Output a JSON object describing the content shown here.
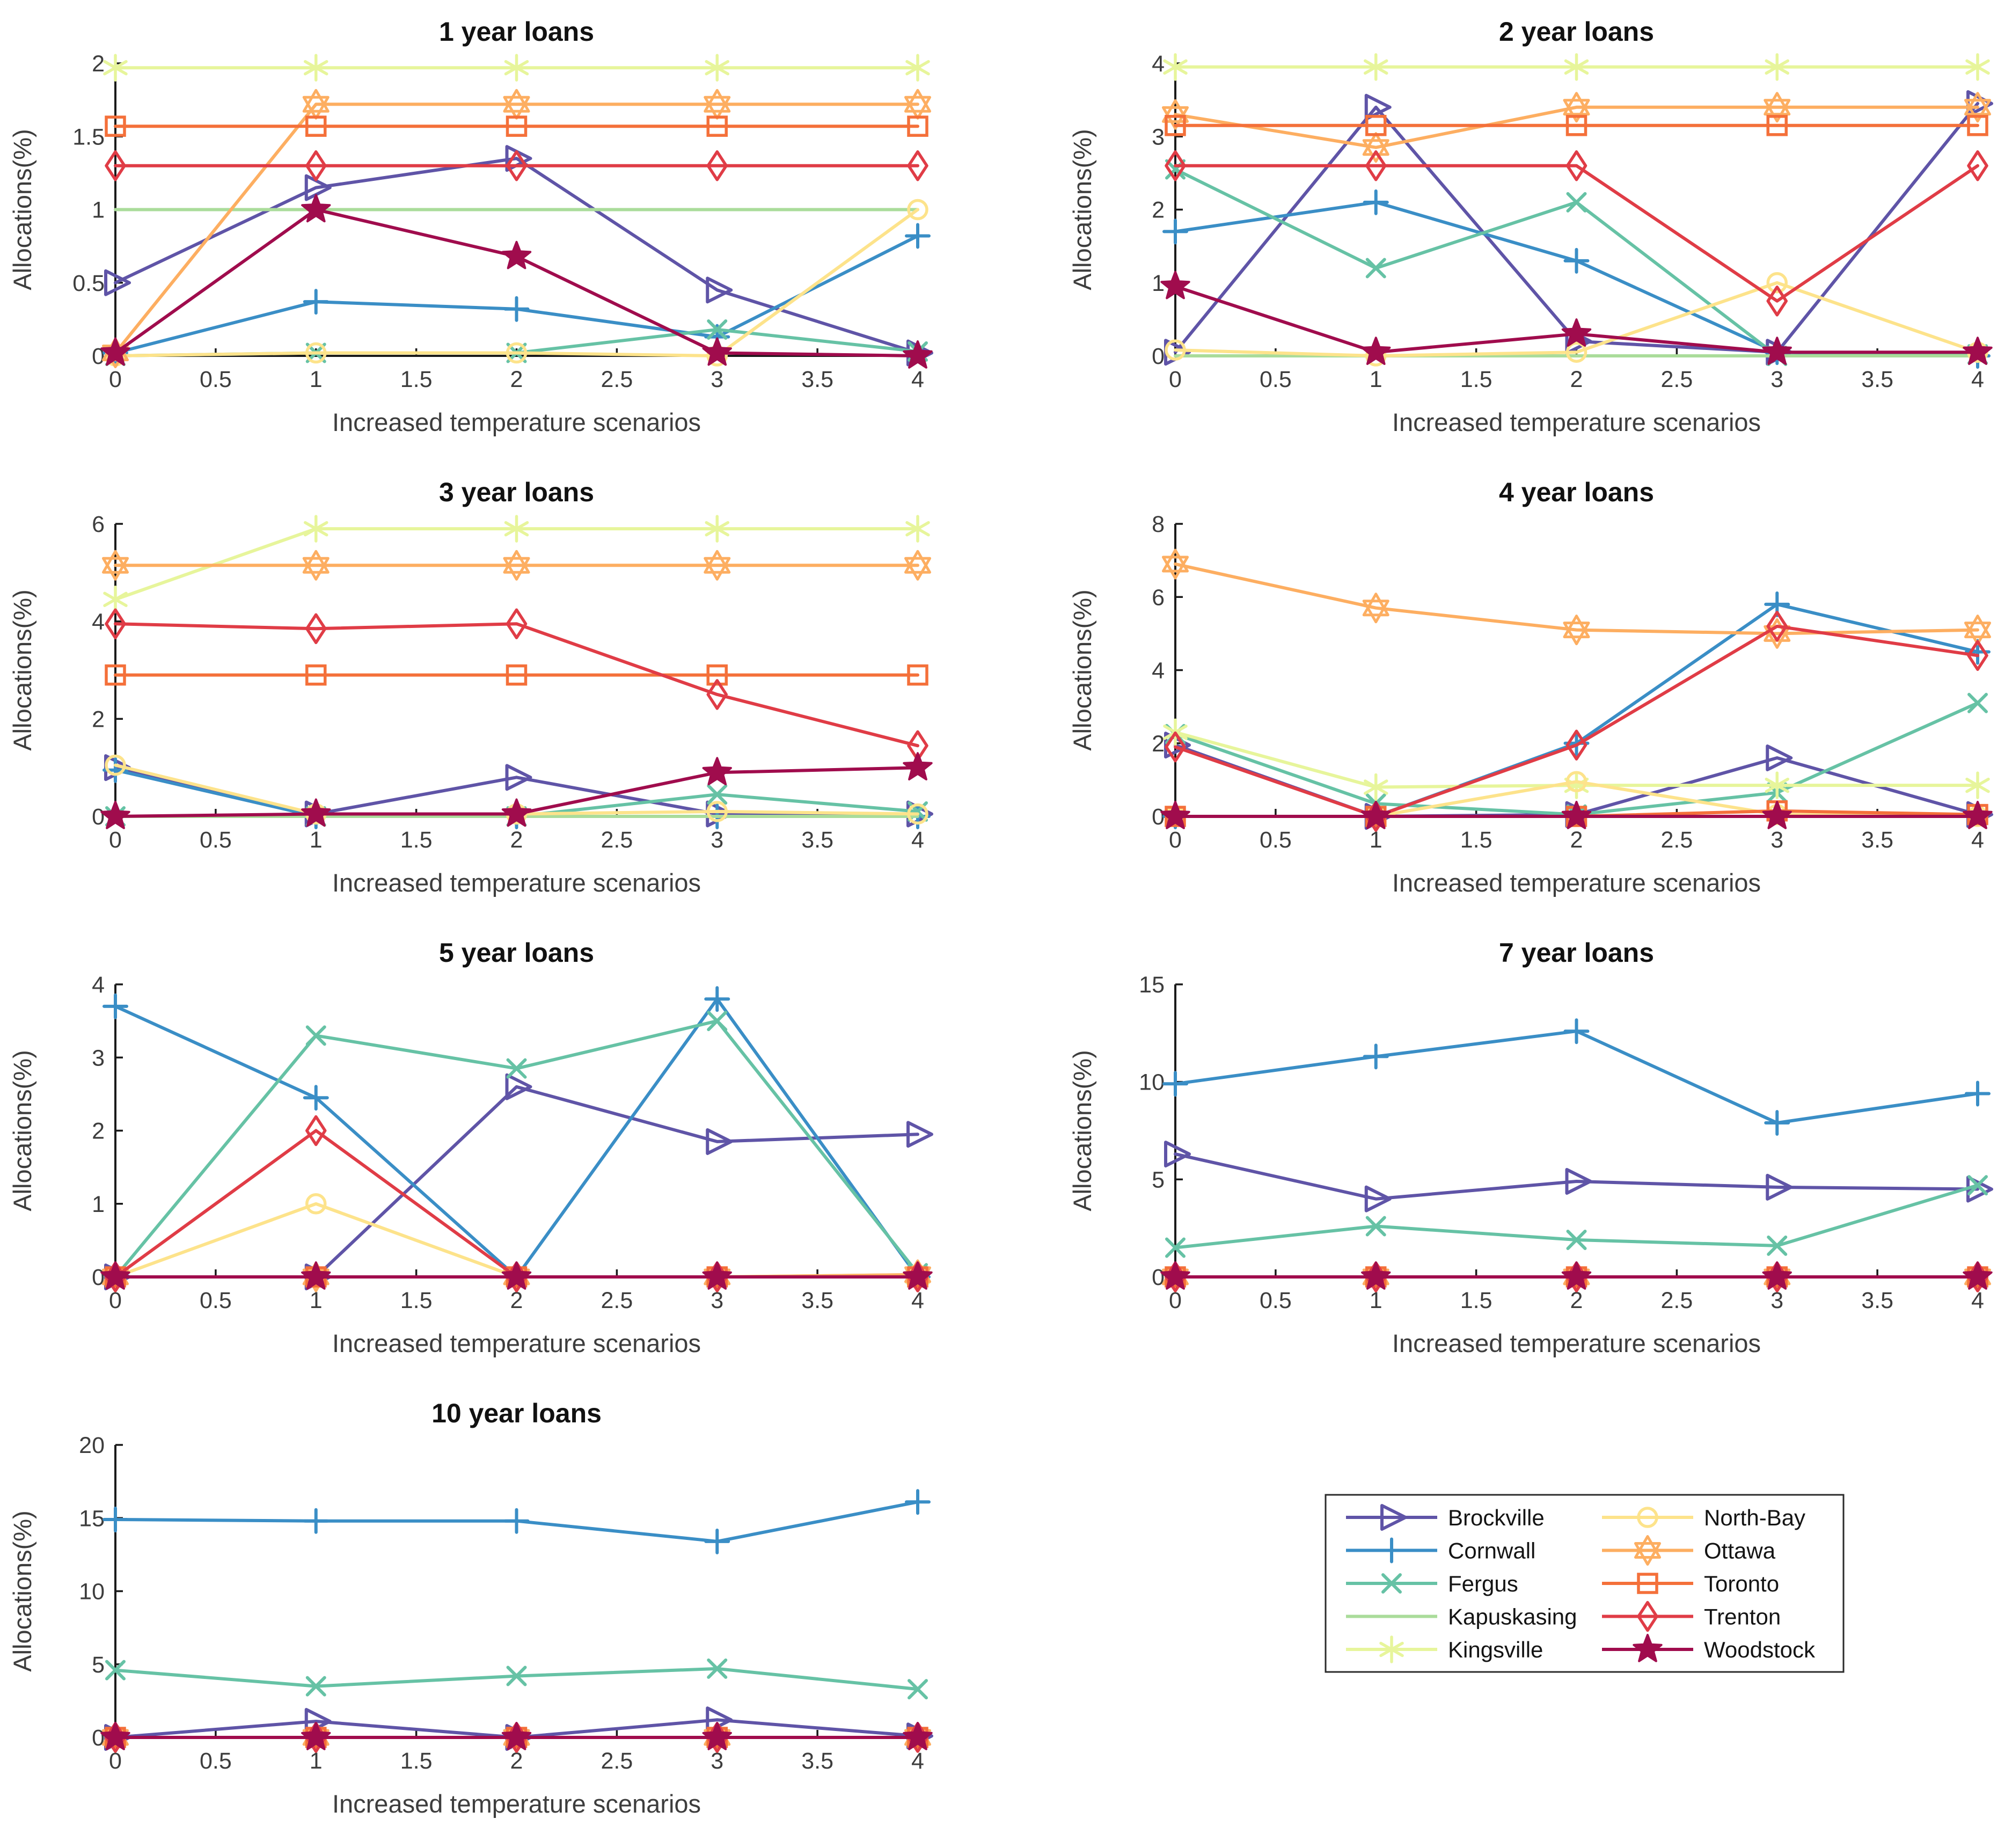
{
  "figure": {
    "background": "#ffffff",
    "xlabel": "Increased temperature scenarios",
    "ylabel": "Allocations(%)",
    "x_ticks": [
      0,
      0.5,
      1,
      1.5,
      2,
      2.5,
      3,
      3.5,
      4
    ],
    "x_range": [
      0,
      4
    ],
    "axis_color": "#1a1a1a",
    "tick_label_color": "#3d3d3d"
  },
  "cities": [
    {
      "name": "Brockville",
      "color": "#5f54a7",
      "marker": "triangle-right"
    },
    {
      "name": "Cornwall",
      "color": "#3a8ec6",
      "marker": "plus"
    },
    {
      "name": "Fergus",
      "color": "#66c2a5",
      "marker": "x"
    },
    {
      "name": "Kapuskasing",
      "color": "#aadc9a",
      "marker": "none"
    },
    {
      "name": "Kingsville",
      "color": "#e7f59b",
      "marker": "asterisk"
    },
    {
      "name": "North-Bay",
      "color": "#fde38b",
      "marker": "circle"
    },
    {
      "name": "Ottawa",
      "color": "#fdae61",
      "marker": "hexagram"
    },
    {
      "name": "Toronto",
      "color": "#f4703a",
      "marker": "square"
    },
    {
      "name": "Trenton",
      "color": "#e03c46",
      "marker": "diamond"
    },
    {
      "name": "Woodstock",
      "color": "#a00c4d",
      "marker": "pentagram"
    }
  ],
  "chart_data": [
    {
      "type": "line",
      "title": "1 year loans",
      "xlabel": "Increased temperature scenarios",
      "ylabel": "Allocations(%)",
      "x": [
        0,
        1,
        2,
        3,
        4
      ],
      "xlim": [
        0,
        4
      ],
      "ylim": [
        0,
        2
      ],
      "yticks": [
        0,
        0.5,
        1,
        1.5,
        2
      ],
      "grid": false,
      "series": [
        {
          "name": "Brockville",
          "values": [
            0.5,
            1.15,
            1.35,
            0.45,
            0.02
          ]
        },
        {
          "name": "Cornwall",
          "values": [
            0.02,
            0.37,
            0.32,
            0.13,
            0.82
          ]
        },
        {
          "name": "Fergus",
          "values": [
            0,
            0.02,
            0.02,
            0.18,
            0.03
          ]
        },
        {
          "name": "Kapuskasing",
          "values": [
            1.0,
            1.0,
            1.0,
            1.0,
            1.0
          ]
        },
        {
          "name": "Kingsville",
          "values": [
            1.97,
            1.97,
            1.97,
            1.97,
            1.97
          ]
        },
        {
          "name": "North-Bay",
          "values": [
            0,
            0.02,
            0.02,
            0,
            1.0
          ]
        },
        {
          "name": "Ottawa",
          "values": [
            0.02,
            1.72,
            1.72,
            1.72,
            1.72
          ]
        },
        {
          "name": "Toronto",
          "values": [
            1.57,
            1.57,
            1.57,
            1.57,
            1.57
          ]
        },
        {
          "name": "Trenton",
          "values": [
            1.3,
            1.3,
            1.3,
            1.3,
            1.3
          ]
        },
        {
          "name": "Woodstock",
          "values": [
            0.02,
            1.0,
            0.68,
            0.02,
            0
          ]
        }
      ]
    },
    {
      "type": "line",
      "title": "2 year loans",
      "xlabel": "Increased temperature scenarios",
      "ylabel": "Allocations(%)",
      "x": [
        0,
        1,
        2,
        3,
        4
      ],
      "xlim": [
        0,
        4
      ],
      "ylim": [
        0,
        4
      ],
      "yticks": [
        0,
        1,
        2,
        3,
        4
      ],
      "grid": false,
      "series": [
        {
          "name": "Brockville",
          "values": [
            0.05,
            3.4,
            0.2,
            0.05,
            3.45
          ]
        },
        {
          "name": "Cornwall",
          "values": [
            1.7,
            2.1,
            1.3,
            0.05,
            0
          ]
        },
        {
          "name": "Fergus",
          "values": [
            2.55,
            1.2,
            2.1,
            0,
            0.02
          ]
        },
        {
          "name": "Kapuskasing",
          "values": [
            0,
            0,
            0,
            0,
            0
          ]
        },
        {
          "name": "Kingsville",
          "values": [
            3.95,
            3.95,
            3.95,
            3.95,
            3.95
          ]
        },
        {
          "name": "North-Bay",
          "values": [
            0.08,
            0,
            0.05,
            1.0,
            0.05
          ]
        },
        {
          "name": "Ottawa",
          "values": [
            3.3,
            2.85,
            3.4,
            3.4,
            3.4
          ]
        },
        {
          "name": "Toronto",
          "values": [
            3.15,
            3.15,
            3.15,
            3.15,
            3.15
          ]
        },
        {
          "name": "Trenton",
          "values": [
            2.6,
            2.6,
            2.6,
            0.75,
            2.6
          ]
        },
        {
          "name": "Woodstock",
          "values": [
            0.95,
            0.05,
            0.3,
            0.05,
            0.05
          ]
        }
      ]
    },
    {
      "type": "line",
      "title": "3 year loans",
      "xlabel": "Increased temperature scenarios",
      "ylabel": "Allocations(%)",
      "x": [
        0,
        1,
        2,
        3,
        4
      ],
      "xlim": [
        0,
        4
      ],
      "ylim": [
        0,
        6
      ],
      "yticks": [
        0,
        2,
        4,
        6
      ],
      "grid": false,
      "series": [
        {
          "name": "Brockville",
          "values": [
            1.0,
            0.05,
            0.8,
            0.05,
            0.05
          ]
        },
        {
          "name": "Cornwall",
          "values": [
            0.95,
            0,
            0,
            0,
            0
          ]
        },
        {
          "name": "Fergus",
          "values": [
            0,
            0,
            0,
            0.45,
            0.1
          ]
        },
        {
          "name": "Kapuskasing",
          "values": [
            0,
            0,
            0,
            0,
            0
          ]
        },
        {
          "name": "Kingsville",
          "values": [
            4.45,
            5.9,
            5.9,
            5.9,
            5.9
          ]
        },
        {
          "name": "North-Bay",
          "values": [
            1.05,
            0.05,
            0.05,
            0.1,
            0.05
          ]
        },
        {
          "name": "Ottawa",
          "values": [
            5.15,
            5.15,
            5.15,
            5.15,
            5.15
          ]
        },
        {
          "name": "Toronto",
          "values": [
            2.9,
            2.9,
            2.9,
            2.9,
            2.9
          ]
        },
        {
          "name": "Trenton",
          "values": [
            3.95,
            3.85,
            3.95,
            2.5,
            1.45
          ]
        },
        {
          "name": "Woodstock",
          "values": [
            0,
            0.05,
            0.05,
            0.9,
            1.0
          ]
        }
      ]
    },
    {
      "type": "line",
      "title": "4 year loans",
      "xlabel": "Increased temperature scenarios",
      "ylabel": "Allocations(%)",
      "x": [
        0,
        1,
        2,
        3,
        4
      ],
      "xlim": [
        0,
        4
      ],
      "ylim": [
        0,
        8
      ],
      "yticks": [
        0,
        2,
        4,
        6,
        8
      ],
      "grid": false,
      "series": [
        {
          "name": "Brockville",
          "values": [
            1.95,
            0,
            0.05,
            1.6,
            0.05
          ]
        },
        {
          "name": "Cornwall",
          "values": [
            0,
            0,
            2.0,
            5.8,
            4.5
          ]
        },
        {
          "name": "Fergus",
          "values": [
            2.25,
            0.35,
            0.05,
            0.65,
            3.1
          ]
        },
        {
          "name": "Kapuskasing",
          "values": [
            0,
            0,
            0,
            0,
            0
          ]
        },
        {
          "name": "Kingsville",
          "values": [
            2.3,
            0.8,
            0.85,
            0.85,
            0.85
          ]
        },
        {
          "name": "North-Bay",
          "values": [
            0,
            0,
            0.95,
            0.05,
            0
          ]
        },
        {
          "name": "Ottawa",
          "values": [
            6.9,
            5.7,
            5.1,
            5.0,
            5.1
          ]
        },
        {
          "name": "Toronto",
          "values": [
            0,
            0,
            0,
            0.15,
            0.05
          ]
        },
        {
          "name": "Trenton",
          "values": [
            1.9,
            0,
            1.95,
            5.2,
            4.4
          ]
        },
        {
          "name": "Woodstock",
          "values": [
            0,
            0,
            0,
            0,
            0
          ]
        }
      ]
    },
    {
      "type": "line",
      "title": "5 year loans",
      "xlabel": "Increased temperature scenarios",
      "ylabel": "Allocations(%)",
      "x": [
        0,
        1,
        2,
        3,
        4
      ],
      "xlim": [
        0,
        4
      ],
      "ylim": [
        0,
        4
      ],
      "yticks": [
        0,
        1,
        2,
        3,
        4
      ],
      "grid": false,
      "series": [
        {
          "name": "Brockville",
          "values": [
            0,
            0,
            2.6,
            1.85,
            1.95
          ]
        },
        {
          "name": "Cornwall",
          "values": [
            3.7,
            2.45,
            0,
            3.8,
            0
          ]
        },
        {
          "name": "Fergus",
          "values": [
            0,
            3.3,
            2.85,
            3.5,
            0.05
          ]
        },
        {
          "name": "Kapuskasing",
          "values": [
            0,
            0,
            0,
            0,
            0
          ]
        },
        {
          "name": "Kingsville",
          "values": [
            0,
            0,
            0,
            0,
            0
          ]
        },
        {
          "name": "North-Bay",
          "values": [
            0,
            1.0,
            0,
            0,
            0.03
          ]
        },
        {
          "name": "Ottawa",
          "values": [
            0,
            0,
            0,
            0,
            0.03
          ]
        },
        {
          "name": "Toronto",
          "values": [
            0,
            0,
            0,
            0,
            0
          ]
        },
        {
          "name": "Trenton",
          "values": [
            0,
            2.0,
            0,
            0,
            0
          ]
        },
        {
          "name": "Woodstock",
          "values": [
            0,
            0,
            0,
            0,
            0
          ]
        }
      ]
    },
    {
      "type": "line",
      "title": "7 year loans",
      "xlabel": "Increased temperature scenarios",
      "ylabel": "Allocations(%)",
      "x": [
        0,
        1,
        2,
        3,
        4
      ],
      "xlim": [
        0,
        4
      ],
      "ylim": [
        0,
        15
      ],
      "yticks": [
        0,
        5,
        10,
        15
      ],
      "grid": false,
      "series": [
        {
          "name": "Brockville",
          "values": [
            6.3,
            4.0,
            4.9,
            4.6,
            4.5
          ]
        },
        {
          "name": "Cornwall",
          "values": [
            9.9,
            11.3,
            12.6,
            7.9,
            9.4
          ]
        },
        {
          "name": "Fergus",
          "values": [
            1.5,
            2.6,
            1.9,
            1.6,
            4.7
          ]
        },
        {
          "name": "Kapuskasing",
          "values": [
            0,
            0,
            0,
            0,
            0
          ]
        },
        {
          "name": "Kingsville",
          "values": [
            0,
            0,
            0,
            0,
            0
          ]
        },
        {
          "name": "North-Bay",
          "values": [
            0,
            0,
            0,
            0,
            0
          ]
        },
        {
          "name": "Ottawa",
          "values": [
            0,
            0,
            0,
            0,
            0
          ]
        },
        {
          "name": "Toronto",
          "values": [
            0,
            0,
            0,
            0,
            0
          ]
        },
        {
          "name": "Trenton",
          "values": [
            0,
            0,
            0,
            0,
            0
          ]
        },
        {
          "name": "Woodstock",
          "values": [
            0,
            0,
            0,
            0,
            0
          ]
        }
      ]
    },
    {
      "type": "line",
      "title": "10 year loans",
      "xlabel": "Increased temperature scenarios",
      "ylabel": "Allocations(%)",
      "x": [
        0,
        1,
        2,
        3,
        4
      ],
      "xlim": [
        0,
        4
      ],
      "ylim": [
        0,
        20
      ],
      "yticks": [
        0,
        5,
        10,
        15,
        20
      ],
      "grid": false,
      "series": [
        {
          "name": "Brockville",
          "values": [
            0,
            1.1,
            0,
            1.2,
            0.1
          ]
        },
        {
          "name": "Cornwall",
          "values": [
            14.9,
            14.8,
            14.8,
            13.4,
            16.1
          ]
        },
        {
          "name": "Fergus",
          "values": [
            4.6,
            3.5,
            4.2,
            4.7,
            3.3
          ]
        },
        {
          "name": "Kapuskasing",
          "values": [
            0,
            0,
            0,
            0,
            0
          ]
        },
        {
          "name": "Kingsville",
          "values": [
            0,
            0,
            0,
            0,
            0
          ]
        },
        {
          "name": "North-Bay",
          "values": [
            0,
            0,
            0,
            0,
            0
          ]
        },
        {
          "name": "Ottawa",
          "values": [
            0,
            0,
            0,
            0,
            0
          ]
        },
        {
          "name": "Toronto",
          "values": [
            0,
            0,
            0,
            0,
            0
          ]
        },
        {
          "name": "Trenton",
          "values": [
            0,
            0,
            0,
            0,
            0
          ]
        },
        {
          "name": "Woodstock",
          "values": [
            0,
            0,
            0,
            0,
            0
          ]
        }
      ]
    }
  ],
  "legend": {
    "position": "bottom-right",
    "columns": [
      [
        "Brockville",
        "Cornwall",
        "Fergus",
        "Kapuskasing",
        "Kingsville"
      ],
      [
        "North-Bay",
        "Ottawa",
        "Toronto",
        "Trenton",
        "Woodstock"
      ]
    ]
  }
}
